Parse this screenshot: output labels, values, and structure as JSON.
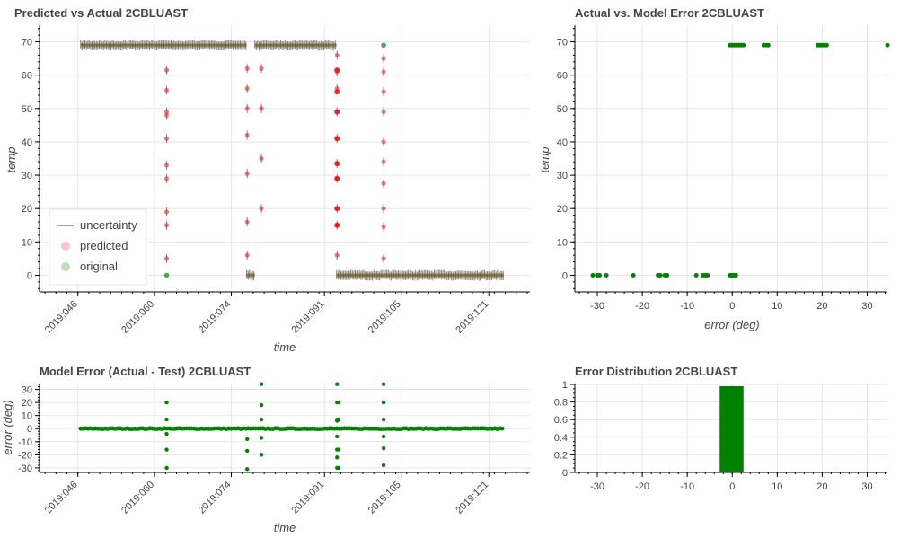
{
  "colors": {
    "original": "#008000",
    "predicted": "#e31a1c",
    "uncertainty": "#808080",
    "error_points": "#008000",
    "histogram": "#008000"
  },
  "chart_data": [
    {
      "id": "pred",
      "type": "scatter",
      "title": "Predicted vs Actual 2CBLUAST",
      "xlabel": "time",
      "ylabel": "temp",
      "x_ticks": [
        "2019:046",
        "2019:060",
        "2019:074",
        "2019:091",
        "2019:105",
        "2019:121"
      ],
      "x_tick_days": [
        46,
        60,
        74,
        91,
        105,
        121
      ],
      "xlim": [
        39,
        128.5
      ],
      "ylim": [
        -5,
        75
      ],
      "y_ticks": [
        0,
        10,
        20,
        30,
        40,
        50,
        60,
        70
      ],
      "legend": [
        "uncertainty",
        "predicted",
        "original"
      ],
      "legend_position": "bottom-left",
      "grid": true,
      "segments": [
        {
          "day_start": 46.5,
          "day_end": 76.8,
          "value": 69
        },
        {
          "day_start": 76.8,
          "day_end": 78.3,
          "value": 0
        },
        {
          "day_start": 78.3,
          "day_end": 93.2,
          "value": 69
        },
        {
          "day_start": 93.2,
          "day_end": 123.7,
          "value": 0
        }
      ],
      "predicted_transients": [
        {
          "day": 62.2,
          "values": [
            61.5,
            55.5,
            49,
            48,
            41,
            33,
            29,
            19,
            15,
            5
          ]
        },
        {
          "day": 76.9,
          "values": [
            62,
            56,
            50,
            42,
            30.5,
            16,
            6
          ]
        },
        {
          "day": 79.5,
          "values": [
            62,
            50,
            35,
            20
          ]
        },
        {
          "day": 93.3,
          "values": [
            66,
            61,
            56,
            49,
            41,
            33.5,
            29,
            20,
            15,
            6
          ]
        },
        {
          "day": 101.8,
          "values": [
            65,
            61,
            55,
            49,
            40,
            34,
            27.5,
            20,
            14.5,
            5
          ]
        }
      ],
      "original_transients": [
        {
          "day": 62.2,
          "value": 0
        },
        {
          "day": 101.8,
          "value": 69
        }
      ],
      "uncertainty_band": 1.5
    },
    {
      "id": "scatter_err",
      "type": "scatter",
      "title": "Actual vs. Model Error 2CBLUAST",
      "xlabel": "error (deg)",
      "ylabel": "temp",
      "xlim": [
        -35,
        34.5
      ],
      "ylim": [
        -5,
        75
      ],
      "x_ticks": [
        -30,
        -20,
        -10,
        0,
        10,
        20,
        30
      ],
      "y_ticks": [
        0,
        10,
        20,
        30,
        40,
        50,
        60,
        70
      ],
      "grid": true,
      "points": [
        [
          -31,
          0
        ],
        [
          -30,
          0
        ],
        [
          -29.5,
          0
        ],
        [
          -28,
          0
        ],
        [
          -22,
          0
        ],
        [
          -16.5,
          0
        ],
        [
          -16,
          0
        ],
        [
          -15,
          0
        ],
        [
          -14.5,
          0
        ],
        [
          -8,
          0
        ],
        [
          -6.5,
          0
        ],
        [
          -6,
          0
        ],
        [
          -5.5,
          0
        ],
        [
          -0.5,
          0
        ],
        [
          -0.2,
          0
        ],
        [
          0,
          0
        ],
        [
          0.2,
          0
        ],
        [
          0.5,
          0
        ],
        [
          0.8,
          0
        ],
        [
          -0.5,
          69
        ],
        [
          0,
          69
        ],
        [
          0.5,
          69
        ],
        [
          1,
          69
        ],
        [
          1.5,
          69
        ],
        [
          2,
          69
        ],
        [
          2.5,
          69
        ],
        [
          7,
          69
        ],
        [
          7.5,
          69
        ],
        [
          8,
          69
        ],
        [
          19,
          69
        ],
        [
          19.5,
          69
        ],
        [
          20,
          69
        ],
        [
          20.5,
          69
        ],
        [
          21,
          69
        ],
        [
          34.5,
          69
        ]
      ]
    },
    {
      "id": "err_time",
      "type": "scatter",
      "title": "Model Error (Actual - Test) 2CBLUAST",
      "xlabel": "time",
      "ylabel": "error (deg)",
      "x_ticks": [
        "2019:046",
        "2019:060",
        "2019:074",
        "2019:091",
        "2019:105",
        "2019:121"
      ],
      "x_tick_days": [
        46,
        60,
        74,
        91,
        105,
        121
      ],
      "xlim": [
        39,
        128.5
      ],
      "ylim": [
        -33.5,
        34.5
      ],
      "y_ticks": [
        -30,
        -20,
        -10,
        0,
        10,
        20,
        30
      ],
      "grid": true,
      "baseline": {
        "day_start": 46.5,
        "day_end": 123.7,
        "value": 0
      },
      "outliers": [
        [
          62.2,
          20
        ],
        [
          62.2,
          7
        ],
        [
          62.2,
          -4
        ],
        [
          62.2,
          -16
        ],
        [
          62.2,
          -30
        ],
        [
          76.9,
          -8
        ],
        [
          76.9,
          -17
        ],
        [
          76.9,
          -31
        ],
        [
          79.5,
          34
        ],
        [
          79.5,
          18
        ],
        [
          79.5,
          7
        ],
        [
          79.5,
          -7
        ],
        [
          79.5,
          -20
        ],
        [
          93.3,
          34
        ],
        [
          93.3,
          20
        ],
        [
          93.3,
          7
        ],
        [
          93.3,
          6
        ],
        [
          93.3,
          -6
        ],
        [
          93.3,
          -16
        ],
        [
          93.3,
          -22
        ],
        [
          93.3,
          -30
        ],
        [
          93.6,
          20
        ],
        [
          93.6,
          7
        ],
        [
          93.6,
          -16
        ],
        [
          93.6,
          -30
        ],
        [
          101.8,
          34
        ],
        [
          101.8,
          20
        ],
        [
          101.8,
          7
        ],
        [
          101.8,
          -6
        ],
        [
          101.8,
          -15
        ],
        [
          101.8,
          -28
        ]
      ]
    },
    {
      "id": "hist",
      "type": "bar",
      "title": "Error Distribution 2CBLUAST",
      "xlabel": "",
      "ylabel": "",
      "xlim": [
        -35,
        34.5
      ],
      "ylim": [
        0,
        1.01
      ],
      "x_ticks": [
        -30,
        -20,
        -10,
        0,
        10,
        20,
        30
      ],
      "y_ticks": [
        0,
        0.2,
        0.4,
        0.6,
        0.8,
        1
      ],
      "y_tick_labels": [
        "0",
        "0.2",
        "0.4",
        "0.6",
        "0.8",
        "1"
      ],
      "grid": true,
      "bins": [
        {
          "x0": -2.8,
          "x1": 2.5,
          "value": 0.98
        }
      ]
    }
  ]
}
